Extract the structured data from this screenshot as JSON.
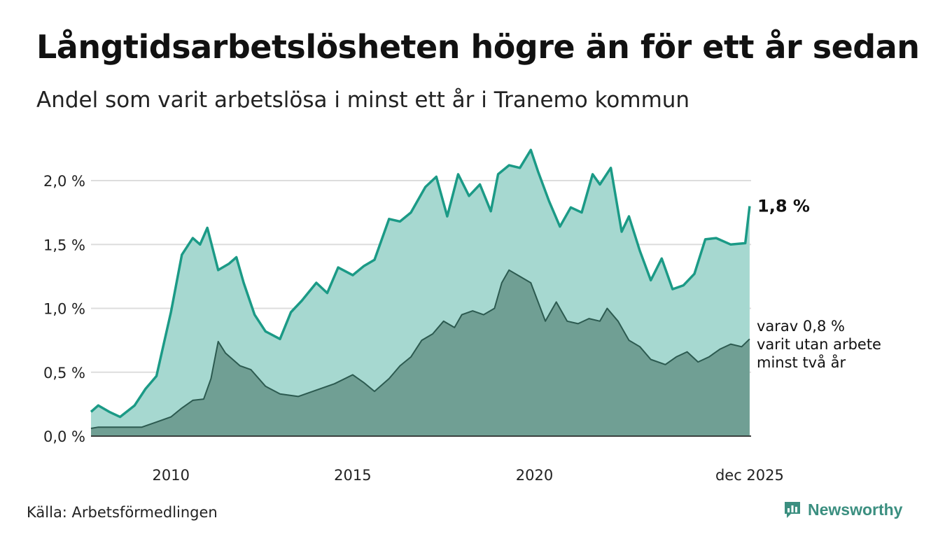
{
  "header": {
    "title": "Långtidsarbetslösheten högre än för ett år sedan",
    "subtitle": "Andel som varit arbetslösa i minst ett år i Tranemo kommun"
  },
  "footer": {
    "source": "Källa: Arbetsförmedlingen",
    "brand": "Newsworthy"
  },
  "colors": {
    "main_line": "#1b9a86",
    "main_fill": "#a6d8d0",
    "sub_line": "#2c5a50",
    "sub_fill": "#709f94",
    "grid": "#dddddd"
  },
  "chart_data": {
    "type": "area",
    "title": "Långtidsarbetslösheten högre än för ett år sedan",
    "subtitle": "Andel som varit arbetslösa i minst ett år i Tranemo kommun",
    "xlabel": "",
    "ylabel": "",
    "ylim": [
      0,
      2.3
    ],
    "xlim": [
      2007.8,
      2025.96
    ],
    "grid": true,
    "y_ticks": [
      0,
      0.5,
      1.0,
      1.5,
      2.0
    ],
    "y_tick_labels": [
      "0,0 %",
      "0,5 %",
      "1,0 %",
      "1,5 %",
      "2,0 %"
    ],
    "x_ticks": [
      2010,
      2015,
      2020,
      2025.92
    ],
    "x_tick_labels": [
      "2010",
      "2015",
      "2020",
      "dec 2025"
    ],
    "end_label_main": "1,8 %",
    "end_label_sub": [
      "varav 0,8 %",
      "varit utan arbete",
      "minst två år"
    ],
    "series": [
      {
        "name": "Minst ett år",
        "x": [
          2007.8,
          2008.0,
          2008.3,
          2008.6,
          2009.0,
          2009.3,
          2009.6,
          2010.0,
          2010.3,
          2010.6,
          2010.8,
          2011.0,
          2011.3,
          2011.6,
          2011.8,
          2012.0,
          2012.3,
          2012.6,
          2013.0,
          2013.3,
          2013.6,
          2014.0,
          2014.3,
          2014.6,
          2015.0,
          2015.3,
          2015.6,
          2016.0,
          2016.3,
          2016.6,
          2017.0,
          2017.3,
          2017.6,
          2017.9,
          2018.2,
          2018.5,
          2018.8,
          2019.0,
          2019.3,
          2019.6,
          2019.9,
          2020.1,
          2020.4,
          2020.7,
          2021.0,
          2021.3,
          2021.6,
          2021.8,
          2022.1,
          2022.4,
          2022.6,
          2022.9,
          2023.2,
          2023.5,
          2023.8,
          2024.1,
          2024.4,
          2024.7,
          2025.0,
          2025.4,
          2025.8,
          2025.92
        ],
        "values": [
          0.19,
          0.24,
          0.19,
          0.15,
          0.24,
          0.37,
          0.47,
          0.97,
          1.42,
          1.55,
          1.5,
          1.63,
          1.3,
          1.35,
          1.4,
          1.2,
          0.95,
          0.82,
          0.76,
          0.97,
          1.06,
          1.2,
          1.12,
          1.32,
          1.26,
          1.33,
          1.38,
          1.7,
          1.68,
          1.75,
          1.95,
          2.03,
          1.72,
          2.05,
          1.88,
          1.97,
          1.76,
          2.05,
          2.12,
          2.1,
          2.24,
          2.07,
          1.84,
          1.64,
          1.79,
          1.75,
          2.05,
          1.97,
          2.1,
          1.6,
          1.72,
          1.45,
          1.22,
          1.39,
          1.15,
          1.18,
          1.27,
          1.54,
          1.55,
          1.5,
          1.51,
          1.8
        ]
      },
      {
        "name": "varav minst två år",
        "x": [
          2007.8,
          2008.0,
          2008.5,
          2009.0,
          2009.2,
          2009.6,
          2010.0,
          2010.3,
          2010.6,
          2010.9,
          2011.1,
          2011.3,
          2011.5,
          2011.7,
          2011.9,
          2012.2,
          2012.6,
          2013.0,
          2013.5,
          2014.0,
          2014.5,
          2015.0,
          2015.3,
          2015.6,
          2016.0,
          2016.3,
          2016.6,
          2016.9,
          2017.2,
          2017.5,
          2017.8,
          2018.0,
          2018.3,
          2018.6,
          2018.9,
          2019.1,
          2019.3,
          2019.6,
          2019.9,
          2020.1,
          2020.3,
          2020.6,
          2020.9,
          2021.2,
          2021.5,
          2021.8,
          2022.0,
          2022.3,
          2022.6,
          2022.9,
          2023.2,
          2023.6,
          2023.9,
          2024.2,
          2024.5,
          2024.8,
          2025.1,
          2025.4,
          2025.7,
          2025.92
        ],
        "values": [
          0.06,
          0.07,
          0.07,
          0.07,
          0.07,
          0.11,
          0.15,
          0.22,
          0.28,
          0.29,
          0.45,
          0.74,
          0.65,
          0.6,
          0.55,
          0.52,
          0.39,
          0.33,
          0.31,
          0.36,
          0.41,
          0.48,
          0.42,
          0.35,
          0.45,
          0.55,
          0.62,
          0.75,
          0.8,
          0.9,
          0.85,
          0.95,
          0.98,
          0.95,
          1.0,
          1.2,
          1.3,
          1.25,
          1.2,
          1.05,
          0.9,
          1.05,
          0.9,
          0.88,
          0.92,
          0.9,
          1.0,
          0.9,
          0.75,
          0.7,
          0.6,
          0.56,
          0.62,
          0.66,
          0.58,
          0.62,
          0.68,
          0.72,
          0.7,
          0.76
        ]
      }
    ]
  }
}
